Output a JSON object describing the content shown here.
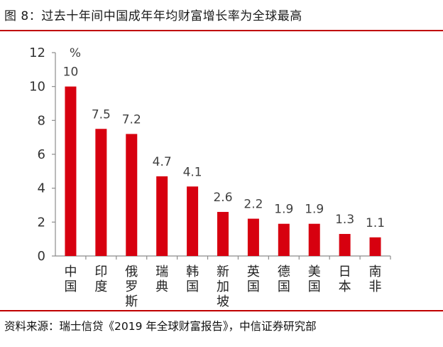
{
  "header": {
    "title": "图 8：过去十年间中国成年年均财富增长率为全球最高"
  },
  "footer": {
    "source": "资料来源：瑞士信贷《2019 年全球财富报告》，中信证券研究部"
  },
  "colors": {
    "bar": "#d7000f",
    "rule": "#c00000"
  },
  "chart_data": {
    "type": "bar",
    "title": "",
    "xlabel": "",
    "ylabel": "%",
    "ylim": [
      0,
      12
    ],
    "yticks": [
      0,
      2,
      4,
      6,
      8,
      10,
      12
    ],
    "grid": false,
    "categories": [
      "中国",
      "印度",
      "俄罗斯",
      "瑞典",
      "韩国",
      "新加坡",
      "英国",
      "德国",
      "美国",
      "日本",
      "南非"
    ],
    "values": [
      10,
      7.5,
      7.2,
      4.7,
      4.1,
      2.6,
      2.2,
      1.9,
      1.9,
      1.3,
      1.1
    ],
    "value_labels": [
      "10",
      "7.5",
      "7.2",
      "4.7",
      "4.1",
      "2.6",
      "2.2",
      "1.9",
      "1.9",
      "1.3",
      "1.1"
    ]
  }
}
